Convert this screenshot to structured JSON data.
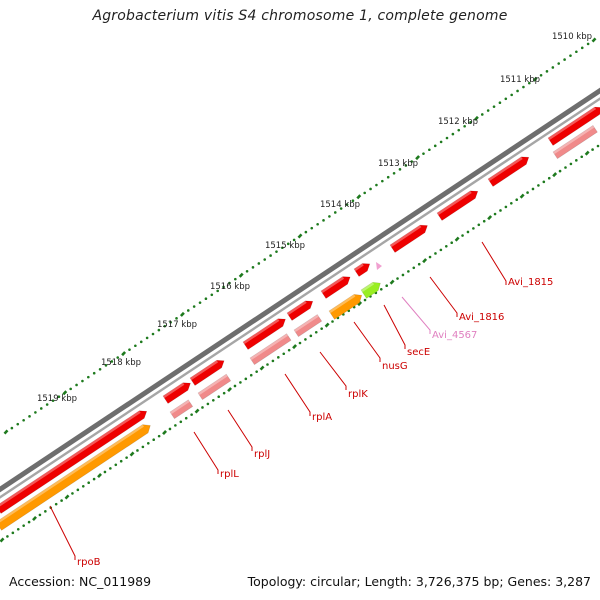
{
  "title": "Agrobacterium vitis S4 chromosome 1, complete genome",
  "accession_label": "Accession: NC_011989",
  "summary_label": "Topology: circular; Length: 3,726,375 bp; Genes: 3,287",
  "colors": {
    "backbone": "#7a7a7a",
    "tick": "#1e7a1e",
    "gene_forward": "#ee0000",
    "gene_reverse": "#f08a8a",
    "orange_gene": "#ff9900",
    "green_gene": "#99ee22",
    "pink_gene": "#f0a0d0",
    "label_red": "#cc0000",
    "label_pink": "#e080c0"
  },
  "ruler": {
    "unit": "kbp",
    "tick_labels": [
      "1510 kbp",
      "1511 kbp",
      "1512 kbp",
      "1513 kbp",
      "1514 kbp",
      "1515 kbp",
      "1516 kbp",
      "1517 kbp",
      "1518 kbp",
      "1519 kbp"
    ]
  },
  "genes": [
    {
      "name": "Avi_1815",
      "strand": "+",
      "color_key": "red"
    },
    {
      "name": "Avi_1816",
      "strand": "+",
      "color_key": "red"
    },
    {
      "name": "Avi_4567",
      "strand": "+",
      "color_key": "pink"
    },
    {
      "name": "secE",
      "strand": "+",
      "color_key": "green"
    },
    {
      "name": "nusG",
      "strand": "+",
      "color_key": "orange"
    },
    {
      "name": "rplK",
      "strand": "+",
      "color_key": "red"
    },
    {
      "name": "rplA",
      "strand": "+",
      "color_key": "red"
    },
    {
      "name": "rplJ",
      "strand": "+",
      "color_key": "red"
    },
    {
      "name": "rplL",
      "strand": "+",
      "color_key": "red"
    },
    {
      "name": "rpoB",
      "strand": "+",
      "color_key": "orange"
    }
  ]
}
